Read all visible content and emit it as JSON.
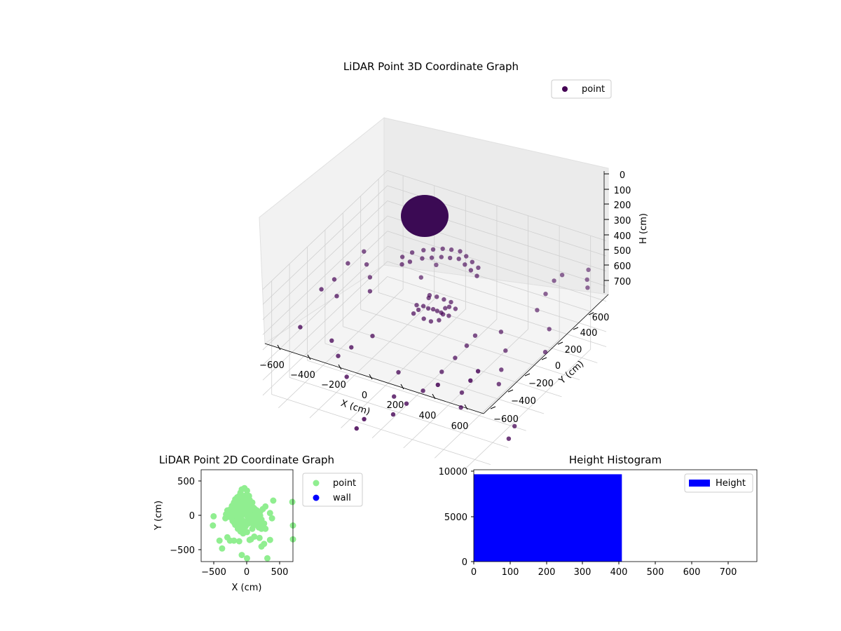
{
  "chart_data": [
    {
      "type": "scatter",
      "title": "LiDAR Point 3D Coordinate Graph",
      "xlabel": "X (cm)",
      "ylabel": "Y (cm)",
      "zlabel": "H (cm)",
      "x_ticks": [
        "−600",
        "−400",
        "−200",
        "0",
        "200",
        "400",
        "600"
      ],
      "y_ticks": [
        "−600",
        "−400",
        "−200",
        "0",
        "200",
        "400",
        "600"
      ],
      "z_ticks": [
        "0",
        "100",
        "200",
        "300",
        "400",
        "500",
        "600",
        "700"
      ],
      "xlim": [
        -700,
        700
      ],
      "ylim": [
        -700,
        700
      ],
      "zlim": [
        0,
        750
      ],
      "z_inverted": true,
      "grid": true,
      "legend": {
        "position": "top-right",
        "entries": [
          "point"
        ]
      },
      "series": [
        {
          "name": "point",
          "color": "#440154",
          "points": [
            [
              -620,
              -420,
              380
            ],
            [
              -610,
              -200,
              250
            ],
            [
              -560,
              10,
              180
            ],
            [
              -590,
              -90,
              240
            ],
            [
              -540,
              -150,
              300
            ],
            [
              -520,
              120,
              150
            ],
            [
              -480,
              80,
              200
            ],
            [
              -430,
              30,
              240
            ],
            [
              -390,
              -40,
              280
            ],
            [
              -470,
              -330,
              470
            ],
            [
              -400,
              -380,
              520
            ],
            [
              -350,
              -320,
              480
            ],
            [
              -300,
              -460,
              580
            ],
            [
              -260,
              -240,
              420
            ],
            [
              -200,
              200,
              260
            ],
            [
              -160,
              300,
              220
            ],
            [
              -100,
              120,
              300
            ],
            [
              -60,
              -300,
              560
            ],
            [
              -20,
              -420,
              640
            ],
            [
              20,
              -500,
              700
            ],
            [
              60,
              -420,
              660
            ],
            [
              120,
              -340,
              600
            ],
            [
              160,
              -200,
              540
            ],
            [
              200,
              -120,
              480
            ],
            [
              240,
              -60,
              420
            ],
            [
              260,
              0,
              380
            ],
            [
              300,
              -220,
              620
            ],
            [
              340,
              -300,
              660
            ],
            [
              380,
              80,
              360
            ],
            [
              420,
              60,
              460
            ],
            [
              450,
              -40,
              520
            ],
            [
              480,
              -120,
              560
            ],
            [
              520,
              240,
              260
            ],
            [
              540,
              300,
              180
            ],
            [
              560,
              360,
              120
            ],
            [
              600,
              380,
              80
            ],
            [
              620,
              200,
              330
            ],
            [
              640,
              120,
              430
            ],
            [
              660,
              -260,
              700
            ],
            [
              680,
              -360,
              720
            ],
            [
              -240,
              60,
              60
            ],
            [
              -200,
              100,
              40
            ],
            [
              -150,
              140,
              30
            ],
            [
              -100,
              160,
              20
            ],
            [
              -50,
              180,
              10
            ],
            [
              0,
              190,
              5
            ],
            [
              50,
              200,
              5
            ],
            [
              100,
              180,
              10
            ],
            [
              150,
              160,
              20
            ],
            [
              200,
              140,
              30
            ],
            [
              -220,
              20,
              80
            ],
            [
              -180,
              40,
              60
            ],
            [
              -130,
              90,
              50
            ],
            [
              -80,
              110,
              40
            ],
            [
              -30,
              130,
              30
            ],
            [
              20,
              140,
              25
            ],
            [
              70,
              150,
              20
            ],
            [
              120,
              130,
              30
            ],
            [
              170,
              110,
              40
            ],
            [
              220,
              90,
              50
            ],
            [
              -60,
              -20,
              280
            ],
            [
              -40,
              0,
              300
            ],
            [
              -20,
              20,
              310
            ],
            [
              0,
              30,
              320
            ],
            [
              20,
              40,
              330
            ],
            [
              40,
              50,
              300
            ],
            [
              60,
              60,
              290
            ],
            [
              -80,
              -40,
              300
            ],
            [
              -100,
              -60,
              320
            ],
            [
              80,
              20,
              320
            ],
            [
              -40,
              -50,
              340
            ],
            [
              0,
              -40,
              350
            ],
            [
              40,
              -20,
              340
            ],
            [
              60,
              -10,
              300
            ],
            [
              -60,
              40,
              260
            ],
            [
              -20,
              60,
              250
            ],
            [
              20,
              70,
              260
            ],
            [
              60,
              80,
              270
            ],
            [
              100,
              60,
              290
            ],
            [
              -120,
              10,
              310
            ],
            [
              420,
              -700,
              260
            ],
            [
              600,
              -650,
              200
            ],
            [
              620,
              -600,
              160
            ],
            [
              -100,
              -700,
              720
            ],
            [
              -80,
              -650,
              680
            ],
            [
              700,
              500,
              80
            ],
            [
              720,
              450,
              110
            ],
            [
              740,
              420,
              140
            ]
          ]
        }
      ]
    },
    {
      "type": "scatter",
      "title": "LiDAR Point 2D Coordinate Graph",
      "xlabel": "X (cm)",
      "ylabel": "Y (cm)",
      "x_ticks": [
        "−500",
        "0",
        "500"
      ],
      "y_ticks": [
        "500",
        "0",
        "−500"
      ],
      "xlim": [
        -700,
        700
      ],
      "ylim": [
        -700,
        700
      ],
      "legend": {
        "position": "outside-right",
        "entries": [
          "point",
          "wall"
        ]
      },
      "series": [
        {
          "name": "point",
          "color": "#90ee90",
          "points": [
            [
              -510,
              -10
            ],
            [
              -520,
              -150
            ],
            [
              -420,
              -380
            ],
            [
              -380,
              -500
            ],
            [
              -300,
              -330
            ],
            [
              -260,
              -380
            ],
            [
              -200,
              -380
            ],
            [
              -120,
              -390
            ],
            [
              -80,
              -600
            ],
            [
              0,
              -650
            ],
            [
              40,
              -370
            ],
            [
              60,
              -360
            ],
            [
              110,
              -320
            ],
            [
              190,
              -340
            ],
            [
              220,
              -470
            ],
            [
              260,
              -430
            ],
            [
              310,
              -650
            ],
            [
              350,
              -370
            ],
            [
              400,
              230
            ],
            [
              690,
              210
            ],
            [
              700,
              -150
            ],
            [
              700,
              -360
            ],
            [
              -60,
              -270
            ],
            [
              0,
              -250
            ],
            [
              80,
              -200
            ],
            [
              150,
              -100
            ],
            [
              200,
              0
            ],
            [
              -280,
              50
            ],
            [
              -250,
              100
            ],
            [
              -230,
              150
            ],
            [
              -200,
              200
            ],
            [
              -180,
              250
            ],
            [
              -150,
              280
            ],
            [
              -120,
              300
            ],
            [
              -100,
              350
            ],
            [
              -80,
              400
            ],
            [
              -40,
              420
            ],
            [
              0,
              380
            ],
            [
              30,
              300
            ],
            [
              20,
              250
            ],
            [
              -20,
              200
            ],
            [
              -60,
              150
            ],
            [
              -100,
              100
            ],
            [
              -140,
              50
            ],
            [
              -180,
              0
            ],
            [
              -220,
              -40
            ],
            [
              -160,
              -80
            ],
            [
              -120,
              -120
            ],
            [
              -80,
              -160
            ],
            [
              -40,
              -120
            ],
            [
              0,
              -80
            ],
            [
              40,
              -40
            ],
            [
              80,
              0
            ],
            [
              120,
              40
            ],
            [
              150,
              80
            ],
            [
              100,
              120
            ],
            [
              60,
              160
            ],
            [
              20,
              100
            ],
            [
              -20,
              60
            ],
            [
              -60,
              20
            ],
            [
              -100,
              -20
            ],
            [
              -140,
              -60
            ],
            [
              -200,
              -100
            ],
            [
              -240,
              60
            ],
            [
              -200,
              120
            ],
            [
              -160,
              180
            ],
            [
              -120,
              220
            ],
            [
              -80,
              260
            ],
            [
              -40,
              300
            ],
            [
              0,
              180
            ],
            [
              40,
              140
            ],
            [
              80,
              80
            ],
            [
              120,
              -20
            ],
            [
              160,
              -60
            ],
            [
              200,
              -120
            ],
            [
              240,
              -160
            ],
            [
              280,
              -200
            ],
            [
              260,
              -120
            ],
            [
              220,
              -60
            ],
            [
              180,
              -20
            ],
            [
              140,
              20
            ],
            [
              200,
              60
            ],
            [
              240,
              100
            ],
            [
              280,
              140
            ],
            [
              160,
              0
            ],
            [
              120,
              100
            ],
            [
              80,
              200
            ],
            [
              40,
              240
            ],
            [
              0,
              280
            ],
            [
              -40,
              240
            ],
            [
              -80,
              200
            ],
            [
              -120,
              160
            ],
            [
              -160,
              120
            ],
            [
              -200,
              80
            ],
            [
              -240,
              20
            ],
            [
              -260,
              -20
            ],
            [
              -220,
              -80
            ],
            [
              -180,
              -140
            ],
            [
              -140,
              -200
            ],
            [
              -100,
              -240
            ],
            [
              -60,
              -200
            ],
            [
              -20,
              -160
            ],
            [
              20,
              -120
            ],
            [
              60,
              -80
            ],
            [
              100,
              -40
            ],
            [
              140,
              -140
            ],
            [
              180,
              -180
            ],
            [
              220,
              -200
            ],
            [
              -300,
              80
            ],
            [
              -320,
              20
            ],
            [
              -330,
              -40
            ],
            [
              -40,
              50
            ],
            [
              0,
              0
            ],
            [
              40,
              40
            ],
            [
              80,
              -100
            ],
            [
              -80,
              -60
            ],
            [
              -120,
              60
            ],
            [
              60,
              100
            ],
            [
              100,
              -140
            ],
            [
              350,
              40
            ],
            [
              380,
              -40
            ],
            [
              -50,
              120
            ],
            [
              10,
              -20
            ],
            [
              130,
              -60
            ],
            [
              -150,
              -20
            ]
          ]
        },
        {
          "name": "wall",
          "color": "#0000ff",
          "points": []
        }
      ]
    },
    {
      "type": "bar",
      "title": "Height Histogram",
      "x_ticks": [
        "0",
        "100",
        "200",
        "300",
        "400",
        "500",
        "600",
        "700"
      ],
      "y_ticks": [
        "0",
        "5000",
        "10000"
      ],
      "xlim": [
        0,
        780
      ],
      "ylim": [
        0,
        10200
      ],
      "legend": {
        "position": "top-right",
        "entries": [
          "Height"
        ]
      },
      "bins": [
        {
          "start": 0,
          "end": 408,
          "count": 9700
        },
        {
          "start": 408,
          "end": 780,
          "count": 0
        }
      ],
      "series": [
        {
          "name": "Height",
          "color": "#0000ff"
        }
      ]
    }
  ]
}
